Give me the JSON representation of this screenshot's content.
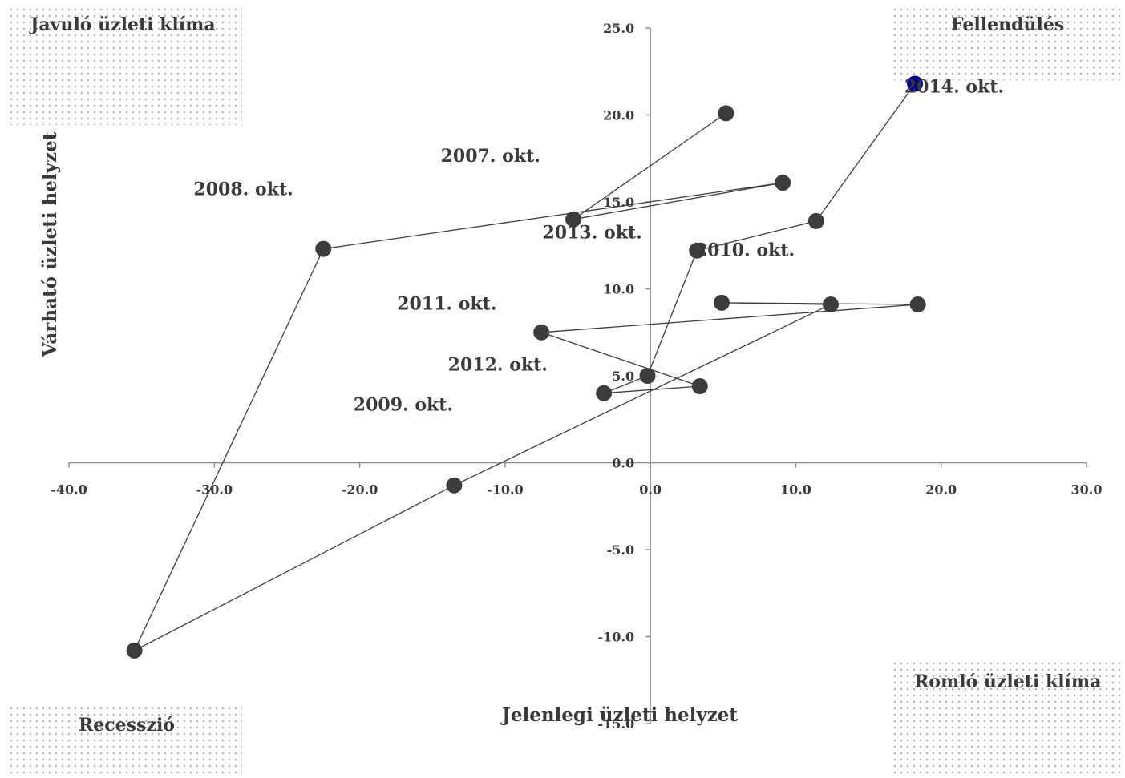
{
  "chart_data": {
    "type": "scatter",
    "xlabel": "Jelenlegi üzleti helyzet",
    "ylabel": "Várható üzleti helyzet",
    "xlim": [
      -40,
      30
    ],
    "ylim": [
      -15,
      25
    ],
    "x_ticks": [
      -40,
      -30,
      -20,
      -10,
      0,
      10,
      20,
      30
    ],
    "y_ticks": [
      -15,
      -10,
      -5,
      0,
      5,
      10,
      15,
      20,
      25
    ],
    "x_tick_labels": [
      "-40.0",
      "-30.0",
      "-20.0",
      "-10.0",
      "0.0",
      "10.0",
      "20.0",
      "30.0"
    ],
    "y_tick_labels": [
      "-15.0",
      "-10.0",
      "-5.0",
      "0.0",
      "5.0",
      "10.0",
      "15.0",
      "20.0",
      "25.0"
    ],
    "grid": false,
    "quadrants": {
      "top_left": "Javuló üzleti klíma",
      "top_right": "Fellendülés",
      "bottom_left": "Recesszió",
      "bottom_right": "Romló üzleti klíma"
    },
    "series": [
      {
        "color": "#3c3c3c",
        "last_point_color": "#00008b",
        "points": [
          [
            5.2,
            20.1
          ],
          [
            -5.3,
            14.0
          ],
          [
            9.1,
            16.1
          ],
          [
            -22.5,
            12.3
          ],
          [
            -35.5,
            -10.8
          ],
          [
            -13.5,
            -1.3
          ],
          [
            12.4,
            9.1
          ],
          [
            4.9,
            9.2
          ],
          [
            18.4,
            9.1
          ],
          [
            -7.5,
            7.5
          ],
          [
            3.4,
            4.4
          ],
          [
            -3.2,
            4.0
          ],
          [
            -0.2,
            5.0
          ],
          [
            3.2,
            12.2
          ],
          [
            11.4,
            13.9
          ],
          [
            18.2,
            21.8
          ]
        ]
      }
    ],
    "annotations": [
      {
        "text": "2007. okt.",
        "x": -11,
        "y": 17.3
      },
      {
        "text": "2008. okt.",
        "x": -28,
        "y": 15.4
      },
      {
        "text": "2013. okt.",
        "x": -4,
        "y": 12.9
      },
      {
        "text": "2010. okt.",
        "x": 6.5,
        "y": 11.9
      },
      {
        "text": "2011. okt.",
        "x": -14,
        "y": 8.8
      },
      {
        "text": "2012. okt.",
        "x": -10.5,
        "y": 5.3
      },
      {
        "text": "2009. okt.",
        "x": -17,
        "y": 3.0
      },
      {
        "text": "2014. okt.",
        "x": 20.9,
        "y": 21.3
      }
    ]
  }
}
